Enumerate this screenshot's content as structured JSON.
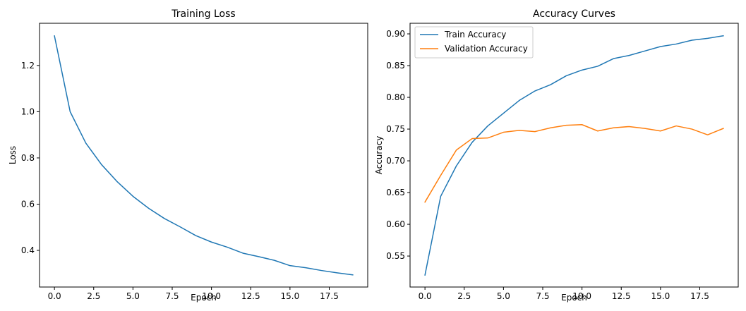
{
  "chart_data": [
    {
      "type": "line",
      "title": "Training Loss",
      "xlabel": "Epoch",
      "ylabel": "Loss",
      "xlim": [
        -0.95,
        19.95
      ],
      "ylim": [
        0.2415,
        1.3825
      ],
      "grid": false,
      "xticks": [
        0,
        2.5,
        5,
        7.5,
        10,
        12.5,
        15,
        17.5
      ],
      "xtick_labels": [
        "0.0",
        "2.5",
        "5.0",
        "7.5",
        "10.0",
        "12.5",
        "15.0",
        "17.5"
      ],
      "yticks": [
        0.4,
        0.6,
        0.8,
        1.0,
        1.2
      ],
      "ytick_labels": [
        "0.4",
        "0.6",
        "0.8",
        "1.0",
        "1.2"
      ],
      "series": [
        {
          "color": "#1f77b4",
          "x": [
            0,
            1,
            2,
            3,
            4,
            5,
            6,
            7,
            8,
            9,
            10,
            11,
            12,
            13,
            14,
            15,
            16,
            17,
            18,
            19
          ],
          "y": [
            1.328,
            1.0,
            0.864,
            0.771,
            0.697,
            0.634,
            0.582,
            0.538,
            0.502,
            0.464,
            0.436,
            0.414,
            0.388,
            0.373,
            0.357,
            0.334,
            0.325,
            0.313,
            0.303,
            0.294
          ]
        }
      ]
    },
    {
      "type": "line",
      "title": "Accuracy Curves",
      "xlabel": "Epoch",
      "ylabel": "Accuracy",
      "xlim": [
        -0.95,
        19.95
      ],
      "ylim": [
        0.5012,
        0.9167
      ],
      "grid": false,
      "legend_position": "top-left",
      "xticks": [
        0,
        2.5,
        5,
        7.5,
        10,
        12.5,
        15,
        17.5
      ],
      "xtick_labels": [
        "0.0",
        "2.5",
        "5.0",
        "7.5",
        "10.0",
        "12.5",
        "15.0",
        "17.5"
      ],
      "yticks": [
        0.55,
        0.6,
        0.65,
        0.7,
        0.75,
        0.8,
        0.85,
        0.9
      ],
      "ytick_labels": [
        "0.55",
        "0.60",
        "0.65",
        "0.70",
        "0.75",
        "0.80",
        "0.85",
        "0.90"
      ],
      "series": [
        {
          "name": "Train Accuracy",
          "color": "#1f77b4",
          "x": [
            0,
            1,
            2,
            3,
            4,
            5,
            6,
            7,
            8,
            9,
            10,
            11,
            12,
            13,
            14,
            15,
            16,
            17,
            18,
            19
          ],
          "y": [
            0.52,
            0.644,
            0.692,
            0.729,
            0.755,
            0.775,
            0.795,
            0.81,
            0.82,
            0.834,
            0.843,
            0.849,
            0.861,
            0.866,
            0.873,
            0.88,
            0.884,
            0.89,
            0.893,
            0.897
          ]
        },
        {
          "name": "Validation Accuracy",
          "color": "#ff7f0e",
          "x": [
            0,
            1,
            2,
            3,
            4,
            5,
            6,
            7,
            8,
            9,
            10,
            11,
            12,
            13,
            14,
            15,
            16,
            17,
            18,
            19
          ],
          "y": [
            0.635,
            0.677,
            0.717,
            0.735,
            0.736,
            0.745,
            0.748,
            0.746,
            0.752,
            0.756,
            0.757,
            0.747,
            0.752,
            0.754,
            0.751,
            0.747,
            0.755,
            0.75,
            0.741,
            0.751
          ]
        }
      ]
    }
  ]
}
